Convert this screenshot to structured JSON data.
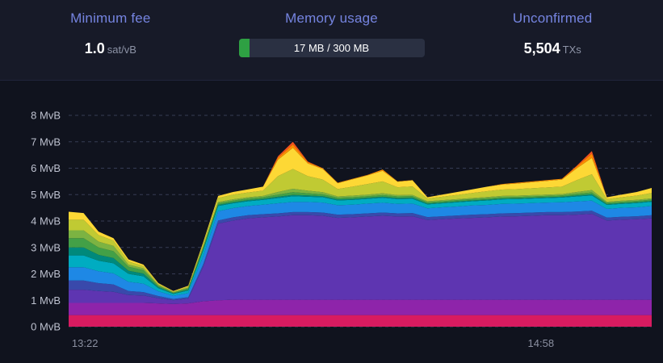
{
  "colors": {
    "heading_accent": "#7584E0",
    "background": "#10131E",
    "stats_background": "#171A28",
    "memory_bar_green": "#2EA043",
    "memory_bar_track": "#2A3042"
  },
  "stats": {
    "minimum_fee": {
      "label": "Minimum fee",
      "value": "1.0",
      "unit": "sat/vB"
    },
    "memory_usage": {
      "label": "Memory usage",
      "text": "17 MB / 300 MB",
      "used_mb": 17,
      "total_mb": 300
    },
    "unconfirmed": {
      "label": "Unconfirmed",
      "value": "5,504",
      "unit": "TXs"
    }
  },
  "chart_data": {
    "type": "area",
    "stacked": true,
    "title": "",
    "xlabel": "",
    "ylabel": "",
    "unit": "MvB",
    "ylim": [
      0,
      8
    ],
    "grid": "dashed-horizontal",
    "legend_position": "none",
    "y_ticks": [
      "0 MvB",
      "1 MvB",
      "2 MvB",
      "3 MvB",
      "4 MvB",
      "5 MvB",
      "6 MvB",
      "7 MvB",
      "8 MvB"
    ],
    "x_ticks": [
      {
        "label": "13:22",
        "pos": 0.028
      },
      {
        "label": "14:58",
        "pos": 0.81
      }
    ],
    "series": [
      {
        "name": "crimson",
        "color": "#D81B60",
        "values": [
          0.44,
          0.44,
          0.44,
          0.44,
          0.44,
          0.44,
          0.44,
          0.44,
          0.44,
          0.44,
          0.44,
          0.44,
          0.44,
          0.44,
          0.44,
          0.44,
          0.44,
          0.44,
          0.44,
          0.44,
          0.44,
          0.44,
          0.44,
          0.44,
          0.44,
          0.44,
          0.44,
          0.44,
          0.44,
          0.44,
          0.44,
          0.44,
          0.44,
          0.44,
          0.44,
          0.44,
          0.44,
          0.44,
          0.44,
          0.44
        ]
      },
      {
        "name": "magenta",
        "color": "#8E24AA",
        "values": [
          0.46,
          0.46,
          0.46,
          0.46,
          0.46,
          0.46,
          0.44,
          0.42,
          0.44,
          0.52,
          0.56,
          0.58,
          0.58,
          0.58,
          0.58,
          0.58,
          0.58,
          0.58,
          0.58,
          0.58,
          0.58,
          0.58,
          0.58,
          0.58,
          0.58,
          0.58,
          0.58,
          0.58,
          0.58,
          0.58,
          0.58,
          0.58,
          0.58,
          0.58,
          0.58,
          0.58,
          0.58,
          0.58,
          0.58,
          0.58
        ]
      },
      {
        "name": "purple",
        "color": "#5E35B1",
        "values": [
          0.5,
          0.5,
          0.45,
          0.42,
          0.3,
          0.28,
          0.2,
          0.14,
          0.18,
          1.3,
          2.9,
          3.0,
          3.08,
          3.12,
          3.15,
          3.2,
          3.2,
          3.18,
          3.1,
          3.12,
          3.15,
          3.18,
          3.15,
          3.16,
          3.02,
          3.05,
          3.08,
          3.1,
          3.12,
          3.15,
          3.16,
          3.18,
          3.2,
          3.2,
          3.22,
          3.25,
          3.0,
          3.03,
          3.05,
          3.08
        ]
      },
      {
        "name": "indigo",
        "color": "#3949AB",
        "values": [
          0.35,
          0.35,
          0.3,
          0.28,
          0.15,
          0.13,
          0.08,
          0.05,
          0.06,
          0.1,
          0.12,
          0.12,
          0.12,
          0.12,
          0.12,
          0.12,
          0.12,
          0.12,
          0.12,
          0.12,
          0.12,
          0.12,
          0.12,
          0.12,
          0.11,
          0.11,
          0.11,
          0.12,
          0.12,
          0.12,
          0.12,
          0.12,
          0.12,
          0.12,
          0.12,
          0.12,
          0.11,
          0.11,
          0.11,
          0.12
        ]
      },
      {
        "name": "blue",
        "color": "#1E88E5",
        "values": [
          0.5,
          0.5,
          0.45,
          0.42,
          0.35,
          0.32,
          0.18,
          0.12,
          0.15,
          0.3,
          0.35,
          0.35,
          0.35,
          0.36,
          0.38,
          0.38,
          0.38,
          0.38,
          0.36,
          0.36,
          0.37,
          0.37,
          0.36,
          0.36,
          0.33,
          0.34,
          0.34,
          0.35,
          0.35,
          0.36,
          0.36,
          0.36,
          0.36,
          0.37,
          0.38,
          0.38,
          0.33,
          0.34,
          0.34,
          0.35
        ]
      },
      {
        "name": "cyan",
        "color": "#00ACC1",
        "values": [
          0.45,
          0.45,
          0.4,
          0.38,
          0.3,
          0.28,
          0.12,
          0.07,
          0.1,
          0.22,
          0.2,
          0.18,
          0.18,
          0.18,
          0.2,
          0.22,
          0.2,
          0.2,
          0.18,
          0.18,
          0.18,
          0.19,
          0.18,
          0.18,
          0.15,
          0.15,
          0.16,
          0.16,
          0.17,
          0.17,
          0.17,
          0.17,
          0.17,
          0.18,
          0.19,
          0.2,
          0.15,
          0.15,
          0.16,
          0.16
        ]
      },
      {
        "name": "teal",
        "color": "#00897B",
        "values": [
          0.3,
          0.3,
          0.22,
          0.2,
          0.12,
          0.1,
          0.04,
          0.02,
          0.03,
          0.05,
          0.04,
          0.04,
          0.04,
          0.04,
          0.05,
          0.05,
          0.05,
          0.04,
          0.04,
          0.04,
          0.04,
          0.04,
          0.04,
          0.04,
          0.03,
          0.03,
          0.03,
          0.03,
          0.03,
          0.03,
          0.03,
          0.03,
          0.03,
          0.03,
          0.04,
          0.04,
          0.03,
          0.03,
          0.03,
          0.03
        ]
      },
      {
        "name": "green",
        "color": "#43A047",
        "values": [
          0.35,
          0.35,
          0.28,
          0.26,
          0.15,
          0.13,
          0.05,
          0.03,
          0.05,
          0.07,
          0.06,
          0.06,
          0.06,
          0.06,
          0.08,
          0.1,
          0.08,
          0.07,
          0.06,
          0.06,
          0.06,
          0.06,
          0.06,
          0.06,
          0.05,
          0.05,
          0.05,
          0.05,
          0.05,
          0.05,
          0.05,
          0.05,
          0.05,
          0.05,
          0.06,
          0.07,
          0.05,
          0.05,
          0.05,
          0.05
        ]
      },
      {
        "name": "light-green",
        "color": "#7CB342",
        "values": [
          0.3,
          0.3,
          0.22,
          0.2,
          0.08,
          0.07,
          0.03,
          0.02,
          0.03,
          0.05,
          0.05,
          0.05,
          0.05,
          0.05,
          0.1,
          0.13,
          0.1,
          0.08,
          0.05,
          0.06,
          0.06,
          0.07,
          0.05,
          0.05,
          0.04,
          0.04,
          0.04,
          0.04,
          0.05,
          0.05,
          0.05,
          0.05,
          0.05,
          0.05,
          0.07,
          0.09,
          0.04,
          0.04,
          0.04,
          0.05
        ]
      },
      {
        "name": "yellow-green",
        "color": "#C0CA33",
        "values": [
          0.4,
          0.4,
          0.25,
          0.2,
          0.12,
          0.08,
          0.04,
          0.02,
          0.04,
          0.1,
          0.15,
          0.18,
          0.18,
          0.2,
          0.6,
          0.75,
          0.55,
          0.48,
          0.28,
          0.34,
          0.4,
          0.45,
          0.3,
          0.32,
          0.1,
          0.13,
          0.16,
          0.19,
          0.22,
          0.24,
          0.25,
          0.26,
          0.27,
          0.28,
          0.45,
          0.6,
          0.1,
          0.13,
          0.16,
          0.2
        ]
      },
      {
        "name": "yellow",
        "color": "#FDD835",
        "values": [
          0.3,
          0.25,
          0.13,
          0.09,
          0.08,
          0.06,
          0.03,
          0.02,
          0.03,
          0.05,
          0.08,
          0.1,
          0.12,
          0.15,
          0.62,
          0.8,
          0.48,
          0.4,
          0.22,
          0.28,
          0.33,
          0.4,
          0.21,
          0.23,
          0.05,
          0.08,
          0.11,
          0.14,
          0.17,
          0.19,
          0.21,
          0.23,
          0.25,
          0.27,
          0.45,
          0.62,
          0.07,
          0.1,
          0.14,
          0.19
        ]
      },
      {
        "name": "orange",
        "color": "#FB8C00",
        "values": [
          0,
          0,
          0,
          0,
          0,
          0,
          0,
          0,
          0,
          0,
          0,
          0,
          0,
          0,
          0.08,
          0.13,
          0.05,
          0.03,
          0.02,
          0.02,
          0.02,
          0.05,
          0.01,
          0.01,
          0,
          0,
          0,
          0,
          0,
          0.02,
          0.03,
          0.03,
          0.03,
          0.03,
          0.07,
          0.16,
          0,
          0,
          0,
          0
        ]
      },
      {
        "name": "red",
        "color": "#F4511E",
        "values": [
          0,
          0,
          0,
          0,
          0,
          0,
          0,
          0,
          0,
          0,
          0,
          0,
          0,
          0,
          0.05,
          0.1,
          0.02,
          0,
          0,
          0,
          0,
          0,
          0,
          0,
          0,
          0,
          0,
          0,
          0,
          0,
          0,
          0,
          0,
          0,
          0.03,
          0.1,
          0,
          0,
          0,
          0
        ]
      }
    ]
  }
}
